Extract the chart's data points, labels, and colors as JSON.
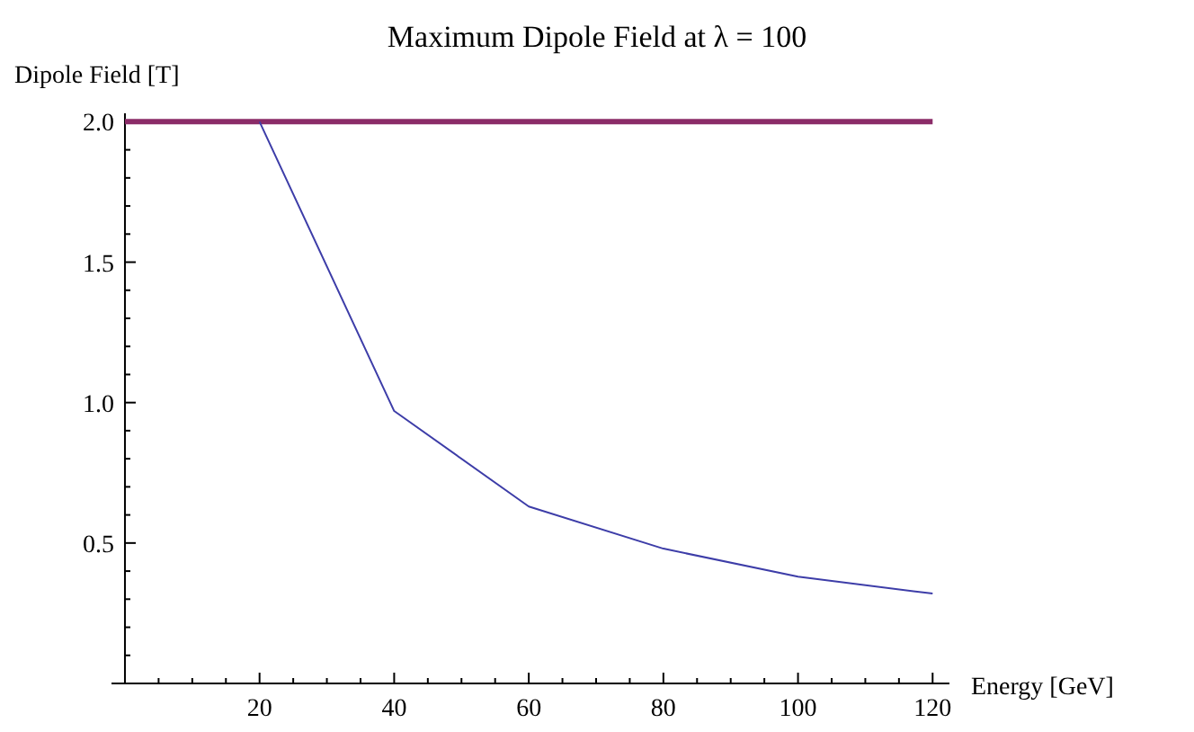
{
  "chart_data": {
    "type": "line",
    "title": "Maximum Dipole Field at λ = 100",
    "xlabel": "Energy [GeV]",
    "ylabel": "Dipole Field [T]",
    "series": [
      {
        "color": "#8b2c68",
        "x": [
          0,
          120
        ],
        "values": [
          2.0,
          2.0
        ]
      },
      {
        "color": "#3d3da8",
        "x": [
          20,
          40,
          60,
          80,
          100,
          120
        ],
        "values": [
          2.0,
          0.97,
          0.63,
          0.48,
          0.38,
          0.32
        ]
      }
    ],
    "xlim": [
      -2,
      122.5
    ],
    "ylim": [
      0,
      2.03
    ],
    "xticks": [
      {
        "value": 5,
        "label": null
      },
      {
        "value": 10,
        "label": null
      },
      {
        "value": 15,
        "label": null
      },
      20,
      {
        "value": 25,
        "label": null
      },
      {
        "value": 30,
        "label": null
      },
      {
        "value": 35,
        "label": null
      },
      40,
      {
        "value": 45,
        "label": null
      },
      {
        "value": 50,
        "label": null
      },
      {
        "value": 55,
        "label": null
      },
      60,
      {
        "value": 65,
        "label": null
      },
      {
        "value": 70,
        "label": null
      },
      {
        "value": 75,
        "label": null
      },
      80,
      {
        "value": 85,
        "label": null
      },
      {
        "value": 90,
        "label": null
      },
      {
        "value": 95,
        "label": null
      },
      100,
      {
        "value": 105,
        "label": null
      },
      {
        "value": 110,
        "label": null
      },
      {
        "value": 115,
        "label": null
      },
      120
    ],
    "yticks": [
      {
        "value": 0.1,
        "label": null
      },
      {
        "value": 0.2,
        "label": null
      },
      {
        "value": 0.3,
        "label": null
      },
      {
        "value": 0.4,
        "label": null
      },
      {
        "value": 0.5,
        "label": "0.5"
      },
      {
        "value": 0.6,
        "label": null
      },
      {
        "value": 0.7,
        "label": null
      },
      {
        "value": 0.8,
        "label": null
      },
      {
        "value": 0.9,
        "label": null
      },
      {
        "value": 1.0,
        "label": "1.0"
      },
      {
        "value": 1.1,
        "label": null
      },
      {
        "value": 1.2,
        "label": null
      },
      {
        "value": 1.3,
        "label": null
      },
      {
        "value": 1.4,
        "label": null
      },
      {
        "value": 1.5,
        "label": "1.5"
      },
      {
        "value": 1.6,
        "label": null
      },
      {
        "value": 1.7,
        "label": null
      },
      {
        "value": 1.8,
        "label": null
      },
      {
        "value": 1.9,
        "label": null
      },
      {
        "value": 2.0,
        "label": "2.0"
      }
    ],
    "grid": false,
    "marker": "none",
    "line_style": "solid"
  }
}
